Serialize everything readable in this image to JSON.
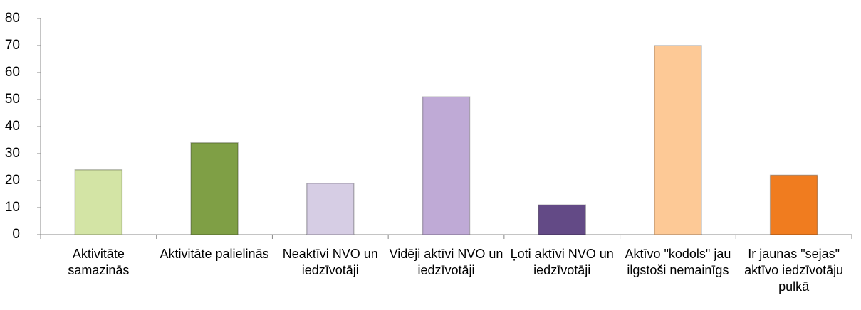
{
  "chart_data": {
    "type": "bar",
    "categories": [
      "Aktivitāte samazinās",
      "Aktivitāte palielinās",
      "Neaktīvi NVO un iedzīvotāji",
      "Vidēji aktīvi NVO un iedzīvotāji",
      "Ļoti aktīvi NVO un iedzīvotāji",
      "Aktīvo \"kodols\" jau ilgstoši nemainīgs",
      "Ir jaunas \"sejas\" aktīvo iedzīvotāju pulkā"
    ],
    "values": [
      24,
      34,
      19,
      51,
      11,
      70,
      22
    ],
    "colors": [
      "#d3e4a5",
      "#7f9f45",
      "#d6cde4",
      "#bfaad6",
      "#634a86",
      "#fdc996",
      "#f07c1f"
    ],
    "ylim": [
      0,
      80
    ],
    "yticks": [
      0,
      10,
      20,
      30,
      40,
      50,
      60,
      70,
      80
    ],
    "grid": false
  }
}
